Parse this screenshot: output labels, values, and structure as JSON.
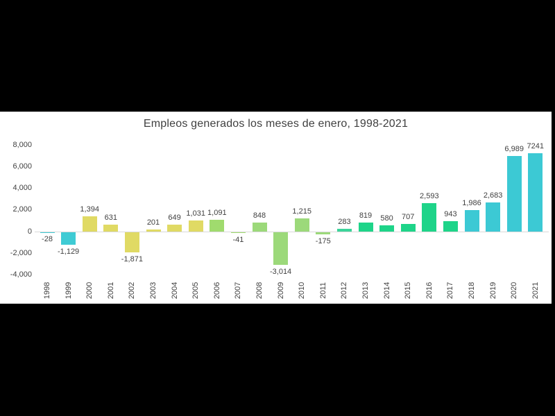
{
  "frame": {
    "background_color": "#000000",
    "panel_color": "#ffffff",
    "text_color": "#404040",
    "axis_color": "#d9d9d9"
  },
  "chart_data": {
    "type": "bar",
    "title": "Empleos generados los meses de enero, 1998-2021",
    "xlabel": "",
    "ylabel": "",
    "ylim": [
      -4000,
      8000
    ],
    "grid": "zero-axis-line-only",
    "legend": "none",
    "categories": [
      "1998",
      "1999",
      "2000",
      "2001",
      "2002",
      "2003",
      "2004",
      "2005",
      "2006",
      "2007",
      "2008",
      "2009",
      "2010",
      "2011",
      "2012",
      "2013",
      "2014",
      "2015",
      "2016",
      "2017",
      "2018",
      "2019",
      "2020",
      "2021"
    ],
    "values": [
      -28,
      -1129,
      1394,
      631,
      -1871,
      201,
      649,
      1031,
      1091,
      -41,
      848,
      -3014,
      1215,
      -175,
      283,
      819,
      580,
      707,
      2593,
      943,
      1986,
      2683,
      6989,
      7241
    ],
    "labels": [
      "-28",
      "-1,129",
      "1,394",
      "631",
      "-1,871",
      "201",
      "649",
      "1,031",
      "1,091",
      "-41",
      "848",
      "-3,014",
      "1,215",
      "-175",
      "283",
      "819",
      "580",
      "707",
      "2,593",
      "943",
      "1,986",
      "2,683",
      "6,989",
      "7241"
    ],
    "colors": [
      "#3fcbd4",
      "#3fcbd4",
      "#e0da64",
      "#e0da64",
      "#e0da64",
      "#e0da64",
      "#e0da64",
      "#e0da64",
      "#a0db6e",
      "#a0db6e",
      "#9cd97a",
      "#9cd97a",
      "#9cd97a",
      "#9cd97a",
      "#3bd49a",
      "#1ed489",
      "#1ed489",
      "#1ed489",
      "#1ed489",
      "#1ed489",
      "#3cc9d4",
      "#3cc9d4",
      "#3cc9d4",
      "#3cc9d4"
    ],
    "y_ticks": [
      {
        "value": 8000,
        "label": "8,000"
      },
      {
        "value": 6000,
        "label": "6,000"
      },
      {
        "value": 4000,
        "label": "4,000"
      },
      {
        "value": 2000,
        "label": "2,000"
      },
      {
        "value": 0,
        "label": "0"
      },
      {
        "value": -2000,
        "label": "-2,000"
      },
      {
        "value": -4000,
        "label": "-4,000"
      }
    ]
  }
}
